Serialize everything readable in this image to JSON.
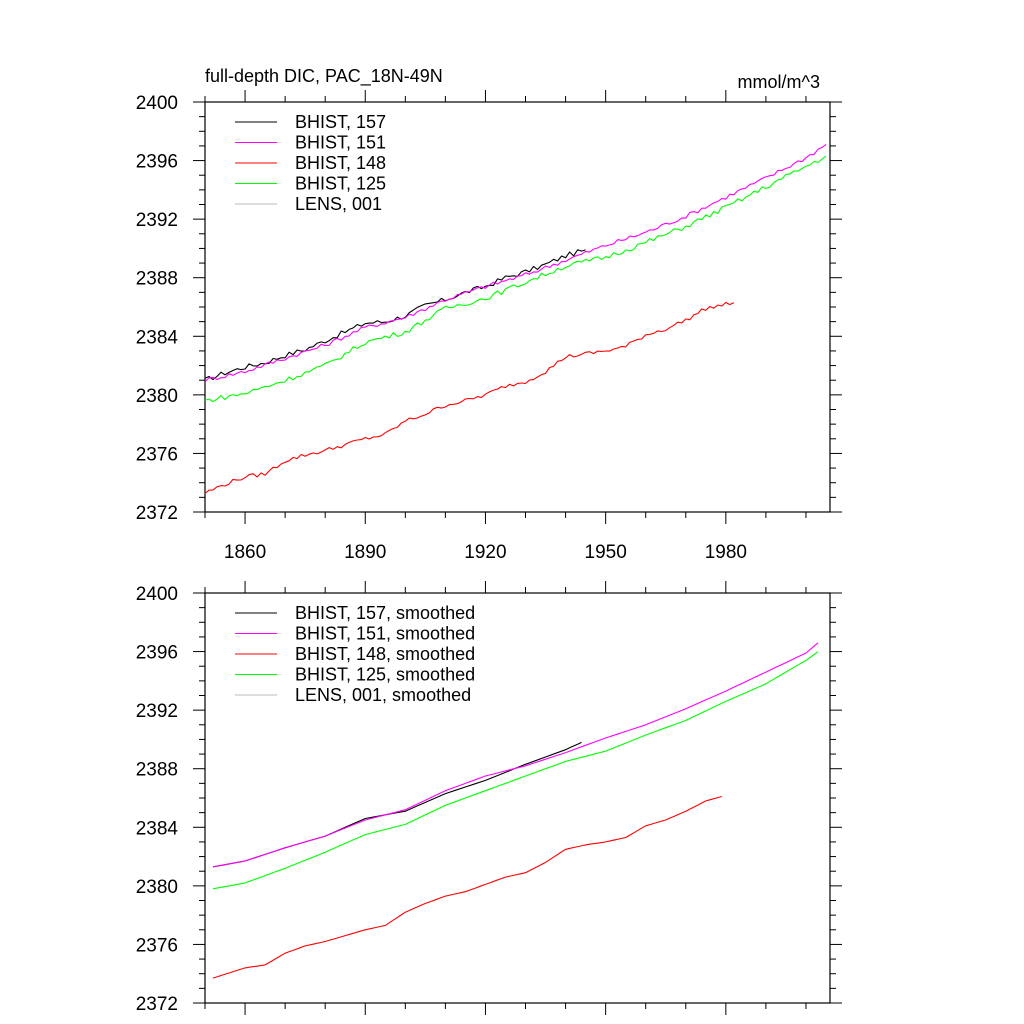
{
  "chart_data": [
    {
      "type": "line",
      "title": "full-depth DIC, PAC_18N-49N",
      "units": "mmol/m^3",
      "xlim": [
        1850,
        2006
      ],
      "ylim": [
        2372,
        2400
      ],
      "yticks": [
        2372,
        2376,
        2380,
        2384,
        2388,
        2392,
        2396,
        2400
      ],
      "xticks": [
        1860,
        1890,
        1920,
        1950,
        1980
      ],
      "xtick_labels_shown": true,
      "grid": false,
      "legend_position": "top-left",
      "series": [
        {
          "name": "BHIST, 157",
          "color": "#000000",
          "x": [
            1850,
            1855,
            1860,
            1865,
            1870,
            1875,
            1880,
            1885,
            1890,
            1895,
            1900,
            1905,
            1910,
            1915,
            1920,
            1925,
            1930,
            1935,
            1940,
            1945
          ],
          "y": [
            2381.0,
            2381.5,
            2381.9,
            2382.2,
            2382.7,
            2383.1,
            2383.7,
            2384.3,
            2384.9,
            2385.0,
            2385.4,
            2386.1,
            2386.5,
            2387.0,
            2387.4,
            2388.0,
            2388.4,
            2388.9,
            2389.5,
            2389.9
          ],
          "noise": 0.18
        },
        {
          "name": "BHIST, 151",
          "color": "#ff00ff",
          "x": [
            1850,
            1860,
            1870,
            1880,
            1890,
            1900,
            1910,
            1920,
            1930,
            1940,
            1950,
            1960,
            1970,
            1980,
            1990,
            2000,
            2005
          ],
          "y": [
            2381.0,
            2381.6,
            2382.5,
            2383.4,
            2384.6,
            2385.3,
            2386.5,
            2387.4,
            2388.2,
            2389.2,
            2390.2,
            2391.1,
            2392.2,
            2393.5,
            2394.8,
            2396.2,
            2397.1
          ],
          "noise": 0.15
        },
        {
          "name": "BHIST, 148",
          "color": "#ff0000",
          "x": [
            1850,
            1855,
            1860,
            1865,
            1870,
            1875,
            1880,
            1885,
            1890,
            1895,
            1900,
            1905,
            1910,
            1915,
            1920,
            1925,
            1930,
            1935,
            1940,
            1945,
            1950,
            1955,
            1960,
            1965,
            1970,
            1975,
            1982
          ],
          "y": [
            2373.3,
            2373.9,
            2374.4,
            2374.6,
            2375.5,
            2375.9,
            2376.2,
            2376.6,
            2377.0,
            2377.3,
            2378.2,
            2378.7,
            2379.3,
            2379.6,
            2380.0,
            2380.6,
            2380.9,
            2381.6,
            2382.6,
            2382.8,
            2383.0,
            2383.3,
            2384.1,
            2384.5,
            2385.1,
            2385.9,
            2386.3
          ],
          "noise": 0.14
        },
        {
          "name": "BHIST, 125",
          "color": "#00ff00",
          "x": [
            1850,
            1860,
            1870,
            1880,
            1890,
            1900,
            1910,
            1920,
            1930,
            1940,
            1950,
            1960,
            1970,
            1980,
            1990,
            2000,
            2005
          ],
          "y": [
            2379.6,
            2380.1,
            2381.0,
            2382.0,
            2383.6,
            2384.3,
            2385.9,
            2386.6,
            2387.7,
            2388.8,
            2389.4,
            2390.4,
            2391.5,
            2392.8,
            2394.2,
            2395.6,
            2396.3
          ],
          "noise": 0.18
        },
        {
          "name": "LENS, 001",
          "color": "#bbbbbb",
          "x": [],
          "y": [],
          "noise": 0
        }
      ]
    },
    {
      "type": "line",
      "title": "",
      "units": "",
      "xlim": [
        1850,
        2006
      ],
      "ylim": [
        2372,
        2400
      ],
      "yticks": [
        2372,
        2376,
        2380,
        2384,
        2388,
        2392,
        2396,
        2400
      ],
      "xticks": [
        1860,
        1890,
        1920,
        1950,
        1980
      ],
      "xtick_labels_shown": false,
      "grid": false,
      "legend_position": "top-left",
      "series": [
        {
          "name": "BHIST, 157, smoothed",
          "color": "#000000",
          "x": [
            1852,
            1860,
            1870,
            1880,
            1890,
            1900,
            1910,
            1920,
            1930,
            1940,
            1944
          ],
          "y": [
            2381.3,
            2381.7,
            2382.6,
            2383.4,
            2384.6,
            2385.1,
            2386.3,
            2387.2,
            2388.3,
            2389.3,
            2389.8
          ]
        },
        {
          "name": "BHIST, 151, smoothed",
          "color": "#ff00ff",
          "x": [
            1852,
            1860,
            1870,
            1880,
            1890,
            1900,
            1910,
            1920,
            1930,
            1940,
            1950,
            1960,
            1970,
            1980,
            1990,
            2000,
            2003
          ],
          "y": [
            2381.3,
            2381.7,
            2382.6,
            2383.4,
            2384.5,
            2385.2,
            2386.5,
            2387.5,
            2388.2,
            2389.1,
            2390.1,
            2391.0,
            2392.1,
            2393.3,
            2394.6,
            2395.9,
            2396.6
          ]
        },
        {
          "name": "BHIST, 148, smoothed",
          "color": "#ff0000",
          "x": [
            1852,
            1860,
            1865,
            1870,
            1875,
            1880,
            1885,
            1890,
            1895,
            1900,
            1905,
            1910,
            1915,
            1920,
            1925,
            1930,
            1935,
            1940,
            1945,
            1950,
            1955,
            1960,
            1965,
            1970,
            1975,
            1979
          ],
          "y": [
            2373.7,
            2374.4,
            2374.6,
            2375.4,
            2375.9,
            2376.2,
            2376.6,
            2377.0,
            2377.3,
            2378.2,
            2378.8,
            2379.3,
            2379.6,
            2380.1,
            2380.6,
            2380.9,
            2381.6,
            2382.5,
            2382.8,
            2383.0,
            2383.3,
            2384.1,
            2384.5,
            2385.1,
            2385.8,
            2386.1
          ]
        },
        {
          "name": "BHIST, 125, smoothed",
          "color": "#00ff00",
          "x": [
            1852,
            1860,
            1870,
            1880,
            1890,
            1900,
            1910,
            1920,
            1930,
            1940,
            1950,
            1960,
            1970,
            1980,
            1990,
            2000,
            2003
          ],
          "y": [
            2379.8,
            2380.2,
            2381.2,
            2382.3,
            2383.5,
            2384.2,
            2385.5,
            2386.5,
            2387.5,
            2388.5,
            2389.2,
            2390.3,
            2391.3,
            2392.6,
            2393.8,
            2395.4,
            2396.0
          ]
        },
        {
          "name": "LENS, 001, smoothed",
          "color": "#bbbbbb",
          "x": [],
          "y": []
        }
      ]
    }
  ]
}
